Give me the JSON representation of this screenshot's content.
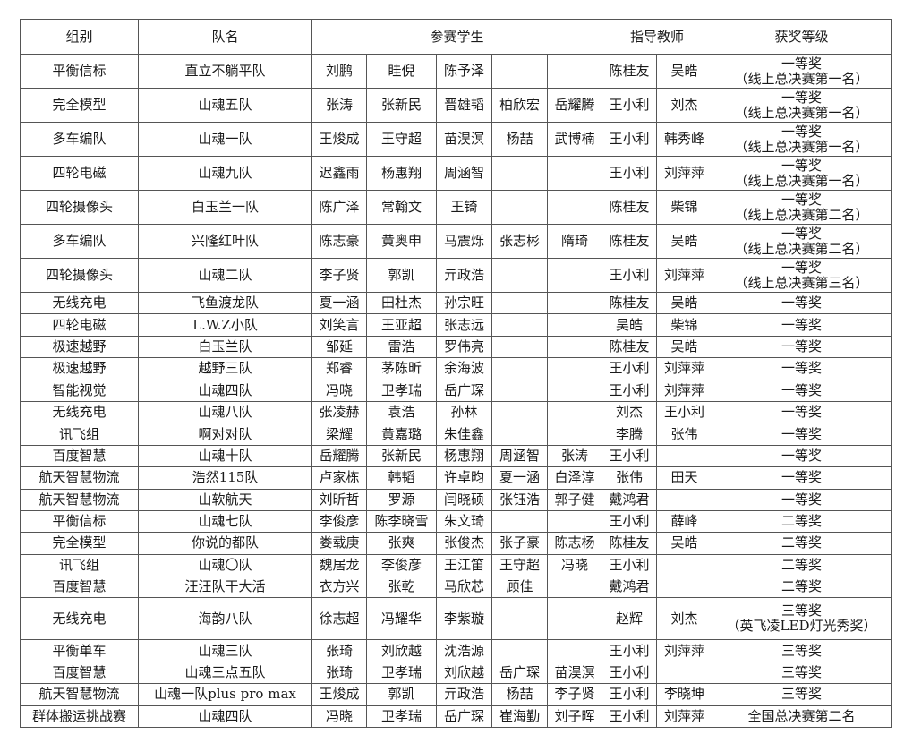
{
  "headers": {
    "group": "组别",
    "team": "队名",
    "students": "参赛学生",
    "teachers": "指导教师",
    "award": "获奖等级"
  },
  "rows": [
    {
      "group": "平衡信标",
      "team": "直立不躺平队",
      "students": [
        "刘鹏",
        "眭倪",
        "陈予泽",
        "",
        ""
      ],
      "teachers": [
        "陈桂友",
        "吴皓"
      ],
      "award": [
        "一等奖",
        "（线上总决赛第一名）"
      ]
    },
    {
      "group": "完全模型",
      "team": "山魂五队",
      "students": [
        "张涛",
        "张新民",
        "晋雄韬",
        "柏欣宏",
        "岳耀腾"
      ],
      "teachers": [
        "王小利",
        "刘杰"
      ],
      "award": [
        "一等奖",
        "（线上总决赛第一名）"
      ]
    },
    {
      "group": "多车编队",
      "team": "山魂一队",
      "students": [
        "王焌成",
        "王守超",
        "苗淏溟",
        "杨喆",
        "武博楠"
      ],
      "teachers": [
        "王小利",
        "韩秀峰"
      ],
      "award": [
        "一等奖",
        "（线上总决赛第一名）"
      ]
    },
    {
      "group": "四轮电磁",
      "team": "山魂九队",
      "students": [
        "迟鑫雨",
        "杨惠翔",
        "周涵智",
        "",
        ""
      ],
      "teachers": [
        "王小利",
        "刘萍萍"
      ],
      "award": [
        "一等奖",
        "（线上总决赛第一名）"
      ]
    },
    {
      "group": "四轮摄像头",
      "team": "白玉兰一队",
      "students": [
        "陈广泽",
        "常翰文",
        "王锜",
        "",
        ""
      ],
      "teachers": [
        "陈桂友",
        "柴锦"
      ],
      "award": [
        "一等奖",
        "（线上总决赛第二名）"
      ]
    },
    {
      "group": "多车编队",
      "team": "兴隆红叶队",
      "students": [
        "陈志豪",
        "黄奥申",
        "马震烁",
        "张志彬",
        "隋琦"
      ],
      "teachers": [
        "陈桂友",
        "吴皓"
      ],
      "award": [
        "一等奖",
        "（线上总决赛第二名）"
      ]
    },
    {
      "group": "四轮摄像头",
      "team": "山魂二队",
      "students": [
        "李子贤",
        "郭凯",
        "亓政浩",
        "",
        ""
      ],
      "teachers": [
        "王小利",
        "刘萍萍"
      ],
      "award": [
        "一等奖",
        "（线上总决赛第三名）"
      ]
    },
    {
      "group": "无线充电",
      "team": "飞鱼渡龙队",
      "students": [
        "夏一涵",
        "田杜杰",
        "孙宗旺",
        "",
        ""
      ],
      "teachers": [
        "陈桂友",
        "吴皓"
      ],
      "award": [
        "一等奖"
      ]
    },
    {
      "group": "四轮电磁",
      "team": "L.W.Z小队",
      "students": [
        "刘笑言",
        "王亚超",
        "张志远",
        "",
        ""
      ],
      "teachers": [
        "吴皓",
        "柴锦"
      ],
      "award": [
        "一等奖"
      ]
    },
    {
      "group": "极速越野",
      "team": "白玉兰队",
      "students": [
        "邹延",
        "雷浩",
        "罗伟亮",
        "",
        ""
      ],
      "teachers": [
        "陈桂友",
        "吴皓"
      ],
      "award": [
        "一等奖"
      ]
    },
    {
      "group": "极速越野",
      "team": "越野三队",
      "students": [
        "郑睿",
        "茅陈昕",
        "余海波",
        "",
        ""
      ],
      "teachers": [
        "王小利",
        "刘萍萍"
      ],
      "award": [
        "一等奖"
      ]
    },
    {
      "group": "智能视觉",
      "team": "山魂四队",
      "students": [
        "冯晓",
        "卫孝瑞",
        "岳广琛",
        "",
        ""
      ],
      "teachers": [
        "王小利",
        "刘萍萍"
      ],
      "award": [
        "一等奖"
      ]
    },
    {
      "group": "无线充电",
      "team": "山魂八队",
      "students": [
        "张凌赫",
        "袁浩",
        "孙林",
        "",
        ""
      ],
      "teachers": [
        "刘杰",
        "王小利"
      ],
      "award": [
        "一等奖"
      ]
    },
    {
      "group": "讯飞组",
      "team": "啊对对队",
      "students": [
        "梁耀",
        "黄嘉璐",
        "朱佳鑫",
        "",
        ""
      ],
      "teachers": [
        "李腾",
        "张伟"
      ],
      "award": [
        "一等奖"
      ]
    },
    {
      "group": "百度智慧",
      "team": "山魂十队",
      "students": [
        "岳耀腾",
        "张新民",
        "杨惠翔",
        "周涵智",
        "张涛"
      ],
      "teachers": [
        "王小利",
        ""
      ],
      "award": [
        "一等奖"
      ]
    },
    {
      "group": "航天智慧物流",
      "team": "浩然115队",
      "students": [
        "卢家栋",
        "韩韬",
        "许卓昀",
        "夏一涵",
        "白泽淳"
      ],
      "teachers": [
        "张伟",
        "田天"
      ],
      "award": [
        "一等奖"
      ]
    },
    {
      "group": "航天智慧物流",
      "team": "山软航天",
      "students": [
        "刘昕哲",
        "罗源",
        "闫晓硕",
        "张钰浩",
        "郭子健"
      ],
      "teachers": [
        "戴鸿君",
        ""
      ],
      "award": [
        "一等奖"
      ]
    },
    {
      "group": "平衡信标",
      "team": "山魂七队",
      "students": [
        "李俊彦",
        "陈李晓雪",
        "朱文琦",
        "",
        ""
      ],
      "teachers": [
        "王小利",
        "薛峰"
      ],
      "award": [
        "二等奖"
      ]
    },
    {
      "group": "完全模型",
      "team": "你说的都队",
      "students": [
        "娄载庚",
        "张爽",
        "张俊杰",
        "张子豪",
        "陈志杨"
      ],
      "teachers": [
        "陈桂友",
        "吴皓"
      ],
      "award": [
        "二等奖"
      ]
    },
    {
      "group": "讯飞组",
      "team": "山魂〇队",
      "students": [
        "魏居龙",
        "李俊彦",
        "王江笛",
        "王守超",
        "冯晓"
      ],
      "teachers": [
        "王小利",
        ""
      ],
      "award": [
        "二等奖"
      ]
    },
    {
      "group": "百度智慧",
      "team": "汪汪队干大活",
      "students": [
        "衣方兴",
        "张乾",
        "马欣芯",
        "顾佳",
        ""
      ],
      "teachers": [
        "戴鸿君",
        ""
      ],
      "award": [
        "二等奖"
      ]
    },
    {
      "group": "无线充电",
      "team": "海韵八队",
      "students": [
        "徐志超",
        "冯耀华",
        "李紫璇",
        "",
        ""
      ],
      "teachers": [
        "赵辉",
        "刘杰"
      ],
      "award": [
        "三等奖",
        "（英飞凌LED灯光秀奖）"
      ]
    },
    {
      "group": "平衡单车",
      "team": "山魂三队",
      "students": [
        "张琦",
        "刘欣越",
        "沈浩源",
        "",
        ""
      ],
      "teachers": [
        "王小利",
        "刘萍萍"
      ],
      "award": [
        "三等奖"
      ]
    },
    {
      "group": "百度智慧",
      "team": "山魂三点五队",
      "students": [
        "张琦",
        "卫孝瑞",
        "刘欣越",
        "岳广琛",
        "苗淏溟"
      ],
      "teachers": [
        "王小利",
        ""
      ],
      "award": [
        "三等奖"
      ]
    },
    {
      "group": "航天智慧物流",
      "team": "山魂一队plus pro max",
      "students": [
        "王焌成",
        "郭凯",
        "亓政浩",
        "杨喆",
        "李子贤"
      ],
      "teachers": [
        "王小利",
        "李晓坤"
      ],
      "award": [
        "三等奖"
      ]
    },
    {
      "group": "群体搬运挑战赛",
      "team": "山魂四队",
      "students": [
        "冯晓",
        "卫孝瑞",
        "岳广琛",
        "崔海勤",
        "刘子晖"
      ],
      "teachers": [
        "王小利",
        "刘萍萍"
      ],
      "award": [
        "全国总决赛第二名"
      ]
    }
  ]
}
